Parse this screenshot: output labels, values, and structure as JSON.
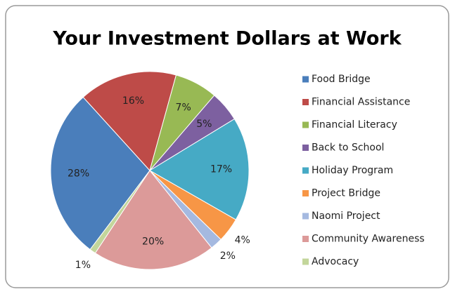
{
  "chart_data": {
    "type": "pie",
    "title": "Your Investment Dollars at Work",
    "categories": [
      "Food Bridge",
      "Financial Assistance",
      "Financial Literacy",
      "Back to School",
      "Holiday Program",
      "Project Bridge",
      "Naomi Project",
      "Community Awareness",
      "Advocacy"
    ],
    "values": [
      28,
      16,
      7,
      5,
      17,
      4,
      2,
      20,
      1
    ],
    "value_labels": [
      "28%",
      "16%",
      "7%",
      "5%",
      "17%",
      "4%",
      "2%",
      "20%",
      "1%"
    ],
    "colors": [
      "#4a7ebb",
      "#be4b48",
      "#98b954",
      "#7d60a0",
      "#46aac5",
      "#f79646",
      "#a5b9e0",
      "#dc9a99",
      "#c3d69b"
    ],
    "legend": "right"
  }
}
